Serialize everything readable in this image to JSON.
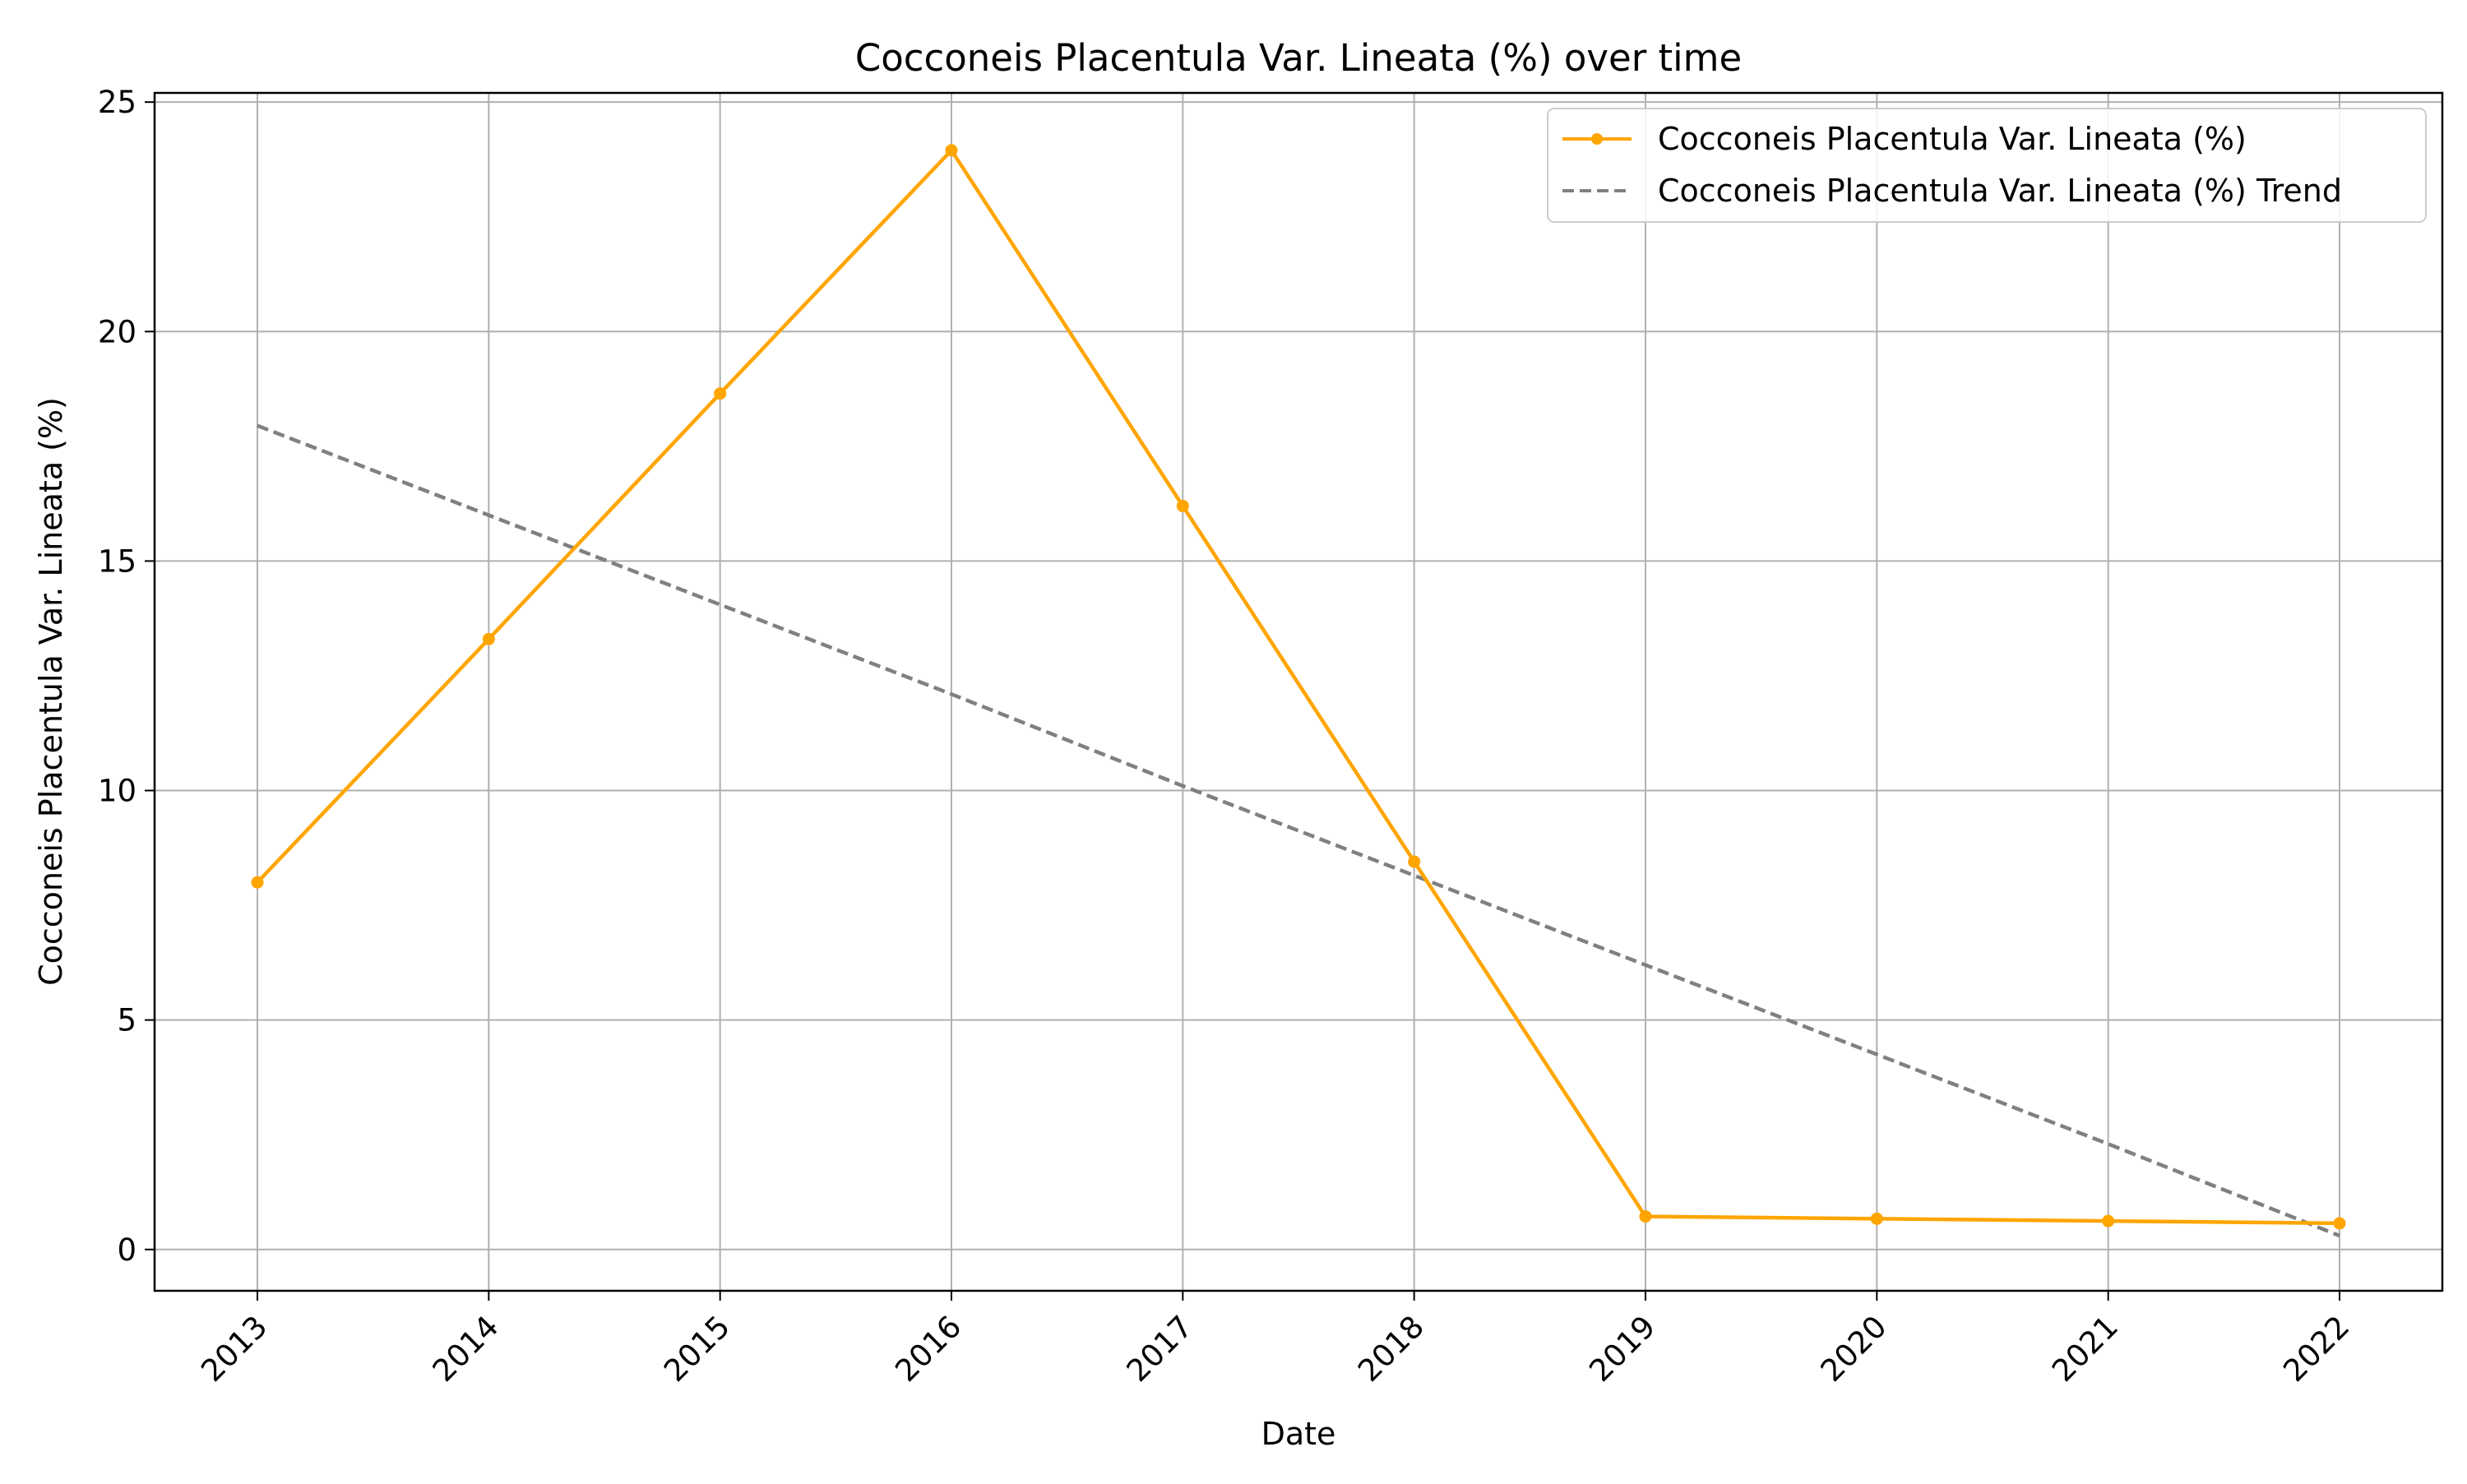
{
  "chart_data": {
    "type": "line",
    "title": "Cocconeis Placentula Var. Lineata (%) over time",
    "xlabel": "Date",
    "ylabel": "Cocconeis Placentula Var. Lineata (%)",
    "categories": [
      "2013",
      "2014",
      "2015",
      "2016",
      "2017",
      "2018",
      "2019",
      "2020",
      "2021",
      "2022"
    ],
    "series": [
      {
        "name": "Cocconeis Placentula Var. Lineata (%)",
        "values": [
          8.0,
          13.3,
          18.65,
          23.95,
          16.2,
          8.45,
          0.72,
          0.67,
          0.62,
          0.57
        ],
        "color": "#ffa500",
        "style": "solid",
        "marker": "circle"
      },
      {
        "name": "Cocconeis Placentula Var. Lineata (%) Trend",
        "values": [
          17.95,
          16.0,
          14.05,
          12.1,
          10.1,
          8.15,
          6.2,
          4.25,
          2.3,
          0.3
        ],
        "color": "#808080",
        "style": "dashed",
        "marker": "none"
      }
    ],
    "ylim": [
      -0.9,
      25.2
    ],
    "yticks": [
      "0",
      "5",
      "10",
      "15",
      "20",
      "25"
    ],
    "grid": true,
    "legend_position": "top-right"
  }
}
